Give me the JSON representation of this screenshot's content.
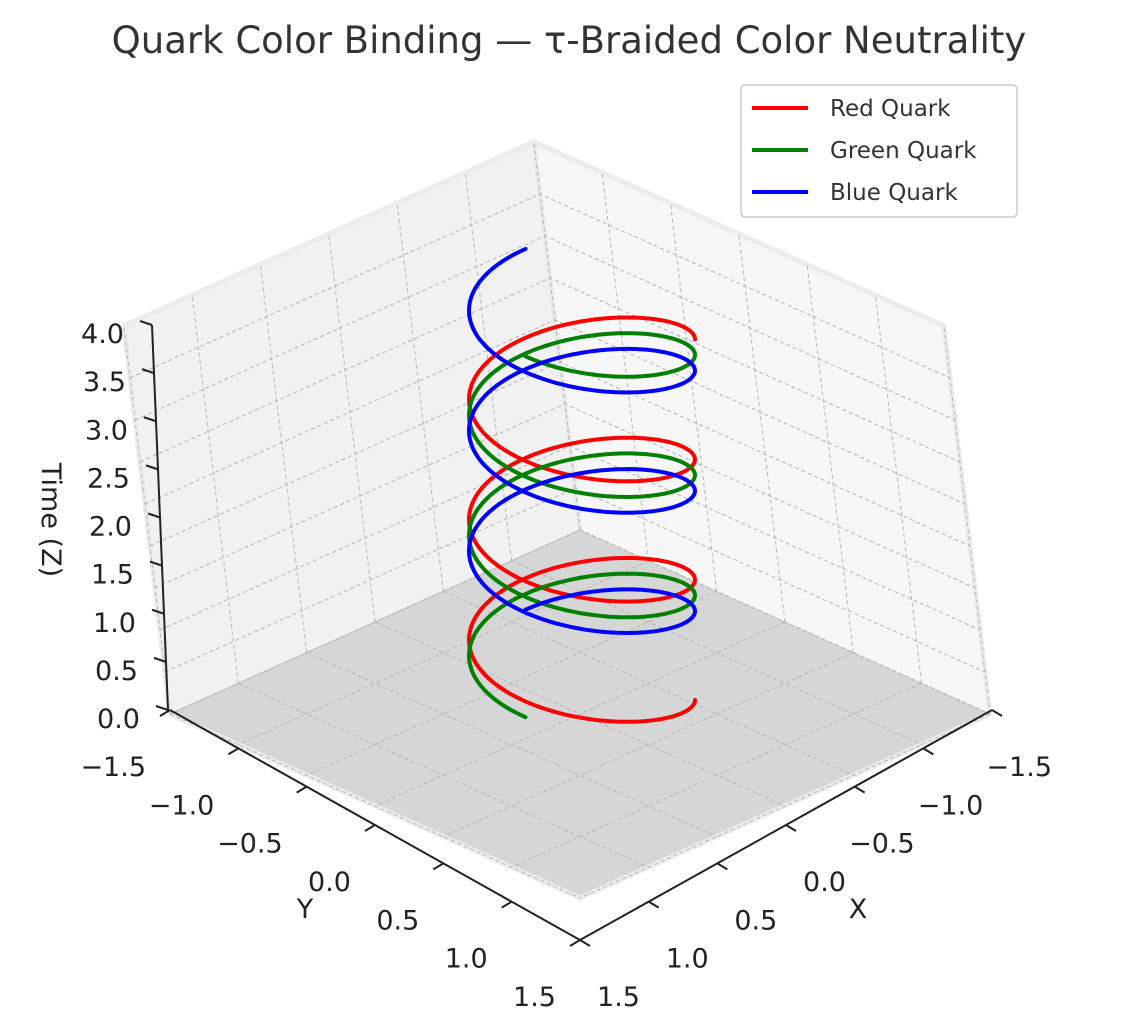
{
  "chart_data": {
    "type": "line",
    "projection": "3d",
    "title": "Quark Color Binding — τ-Braided Color Neutrality",
    "xlabel": "X",
    "ylabel": "Y",
    "zlabel": "Time (Z)",
    "xlim": [
      -1.5,
      1.5
    ],
    "ylim": [
      -1.5,
      1.5
    ],
    "zlim": [
      0,
      4
    ],
    "xticks": [
      "−1.5",
      "−1.0",
      "−0.5",
      "0.0",
      "0.5",
      "1.0",
      "1.5"
    ],
    "yticks": [
      "−1.5",
      "−1.0",
      "−0.5",
      "0.0",
      "0.5",
      "1.0",
      "1.5"
    ],
    "zticks": [
      "0.0",
      "0.5",
      "1.0",
      "1.5",
      "2.0",
      "2.5",
      "3.0",
      "3.5",
      "4.0"
    ],
    "grid": true,
    "legend_position": "top-right",
    "series": [
      {
        "name": "Red Quark",
        "color": "#ff0000",
        "z_start": 0.0,
        "z_end": 3.7,
        "phase_deg": 0,
        "radius": 1.0,
        "turns": 3
      },
      {
        "name": "Green Quark",
        "color": "#008000",
        "z_start": 0.25,
        "z_end": 3.95,
        "phase_deg": 120,
        "radius": 1.0,
        "turns": 3
      },
      {
        "name": "Blue Quark",
        "color": "#0000ff",
        "z_start": 0.5,
        "z_end": 4.2,
        "phase_deg": 240,
        "radius": 1.0,
        "turns": 3
      }
    ]
  }
}
